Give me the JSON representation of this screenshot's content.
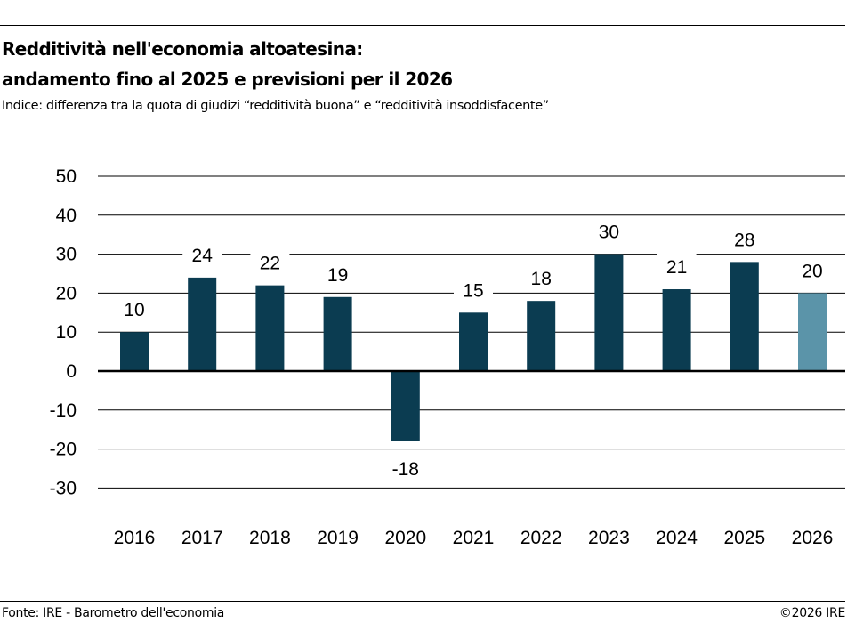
{
  "header": {
    "title_line1": "Redditività nell'economia altoatesina:",
    "title_line2": "andamento fino al 2025 e previsioni per il 2026",
    "subtitle": "Indice: differenza tra la quota di giudizi “redditività buona” e “redditività insoddisfacente”"
  },
  "footer": {
    "source": "Fonte: IRE - Barometro dell'economia",
    "copyright": "©2026 IRE"
  },
  "colors": {
    "actual": "#0b3c51",
    "forecast": "#5b94a9"
  },
  "chart_data": {
    "type": "bar",
    "categories": [
      "2016",
      "2017",
      "2018",
      "2019",
      "2020",
      "2021",
      "2022",
      "2023",
      "2024",
      "2025",
      "2026"
    ],
    "values": [
      10,
      24,
      22,
      19,
      -18,
      15,
      18,
      30,
      21,
      28,
      20
    ],
    "forecast": [
      false,
      false,
      false,
      false,
      false,
      false,
      false,
      false,
      false,
      false,
      true
    ],
    "ylim": [
      -30,
      50
    ],
    "yticks": [
      50,
      40,
      30,
      20,
      10,
      0,
      -10,
      -20,
      -30
    ],
    "grid": true,
    "title": "",
    "xlabel": "",
    "ylabel": ""
  }
}
